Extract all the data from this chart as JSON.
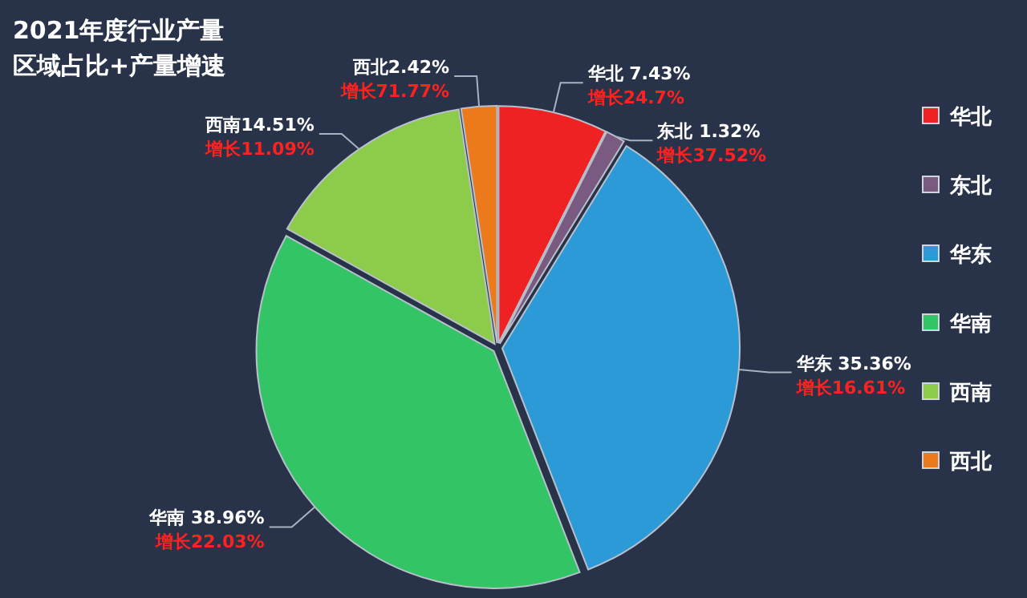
{
  "chart_data": {
    "type": "pie",
    "title": "2021年度行业产量",
    "subtitle": "区域占比+产量增速",
    "categories": [
      "华北",
      "东北",
      "华东",
      "华南",
      "西南",
      "西北"
    ],
    "values": [
      7.43,
      1.32,
      35.36,
      38.96,
      14.51,
      2.42
    ],
    "colors": [
      "#ee2222",
      "#7a5a80",
      "#2c9ad6",
      "#33c466",
      "#8ccc4a",
      "#ec7a1a"
    ],
    "value_labels": [
      "华北 7.43%",
      "东北 1.32%",
      "华东 35.36%",
      "华南 38.96%",
      "西南14.51%",
      "西北2.42%"
    ],
    "annotations": [
      "增长24.7%",
      "增长37.52%",
      "增长16.61%",
      "增长22.03%",
      "增长11.09%",
      "增长71.77%"
    ],
    "legend": "right"
  }
}
